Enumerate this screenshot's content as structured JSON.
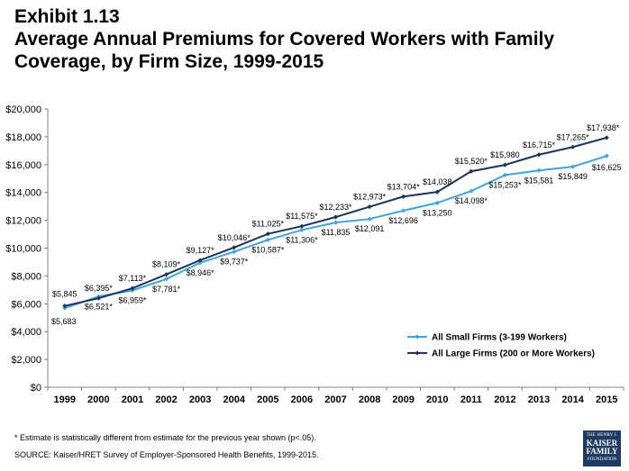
{
  "header": {
    "exhibit": "Exhibit 1.13",
    "title": "Average Annual Premiums for Covered Workers with Family Coverage, by Firm Size, 1999-2015"
  },
  "footer": {
    "footnote": "* Estimate is statistically different from estimate for the previous year shown (p<.05).",
    "source": "SOURCE:  Kaiser/HRET Survey of Employer-Sponsored Health Benefits, 1999-2015."
  },
  "logo": {
    "line1": "THE HENRY J.",
    "line2": "KAISER",
    "line3": "FAMILY",
    "line4": "FOUNDATION"
  },
  "chart_data": {
    "type": "line",
    "x": [
      "1999",
      "2000",
      "2001",
      "2002",
      "2003",
      "2004",
      "2005",
      "2006",
      "2007",
      "2008",
      "2009",
      "2010",
      "2011",
      "2012",
      "2013",
      "2014",
      "2015"
    ],
    "y_ticks": [
      "$0",
      "$2,000",
      "$4,000",
      "$6,000",
      "$8,000",
      "$10,000",
      "$12,000",
      "$14,000",
      "$16,000",
      "$18,000",
      "$20,000"
    ],
    "ylim": [
      0,
      20000
    ],
    "grid": false,
    "legend_position": "bottom-right",
    "series": [
      {
        "name": "All Small Firms (3-199 Workers)",
        "color": "#41a3dc",
        "values": [
          5683,
          6521,
          6959,
          7781,
          8946,
          9737,
          10587,
          11306,
          11835,
          12091,
          12696,
          13250,
          14098,
          15253,
          15581,
          15849,
          16625
        ],
        "labels": [
          "$5,683",
          "$6,521*",
          "$6,959*",
          "$7,781*",
          "$8,946*",
          "$9,737*",
          "$10,587*",
          "$11,306*",
          "$11,835",
          "$12,091",
          "$12,696",
          "$13,250",
          "$14,098*",
          "$15,253*",
          "$15,581",
          "$15,849",
          "$16,625"
        ]
      },
      {
        "name": "All Large Firms (200 or More Workers)",
        "color": "#1c3557",
        "values": [
          5845,
          6395,
          7113,
          8109,
          9127,
          10046,
          11025,
          11575,
          12233,
          12973,
          13704,
          14038,
          15520,
          15980,
          16715,
          17265,
          17938
        ],
        "labels": [
          "$5,845",
          "$6,395*",
          "$7,113*",
          "$8,109*",
          "$9,127*",
          "$10,046*",
          "$11,025*",
          "$11,575*",
          "$12,233*",
          "$12,973*",
          "$13,704*",
          "$14,038",
          "$15,520*",
          "$15,980",
          "$16,715*",
          "$17,265*",
          "$17,938*"
        ]
      }
    ]
  }
}
